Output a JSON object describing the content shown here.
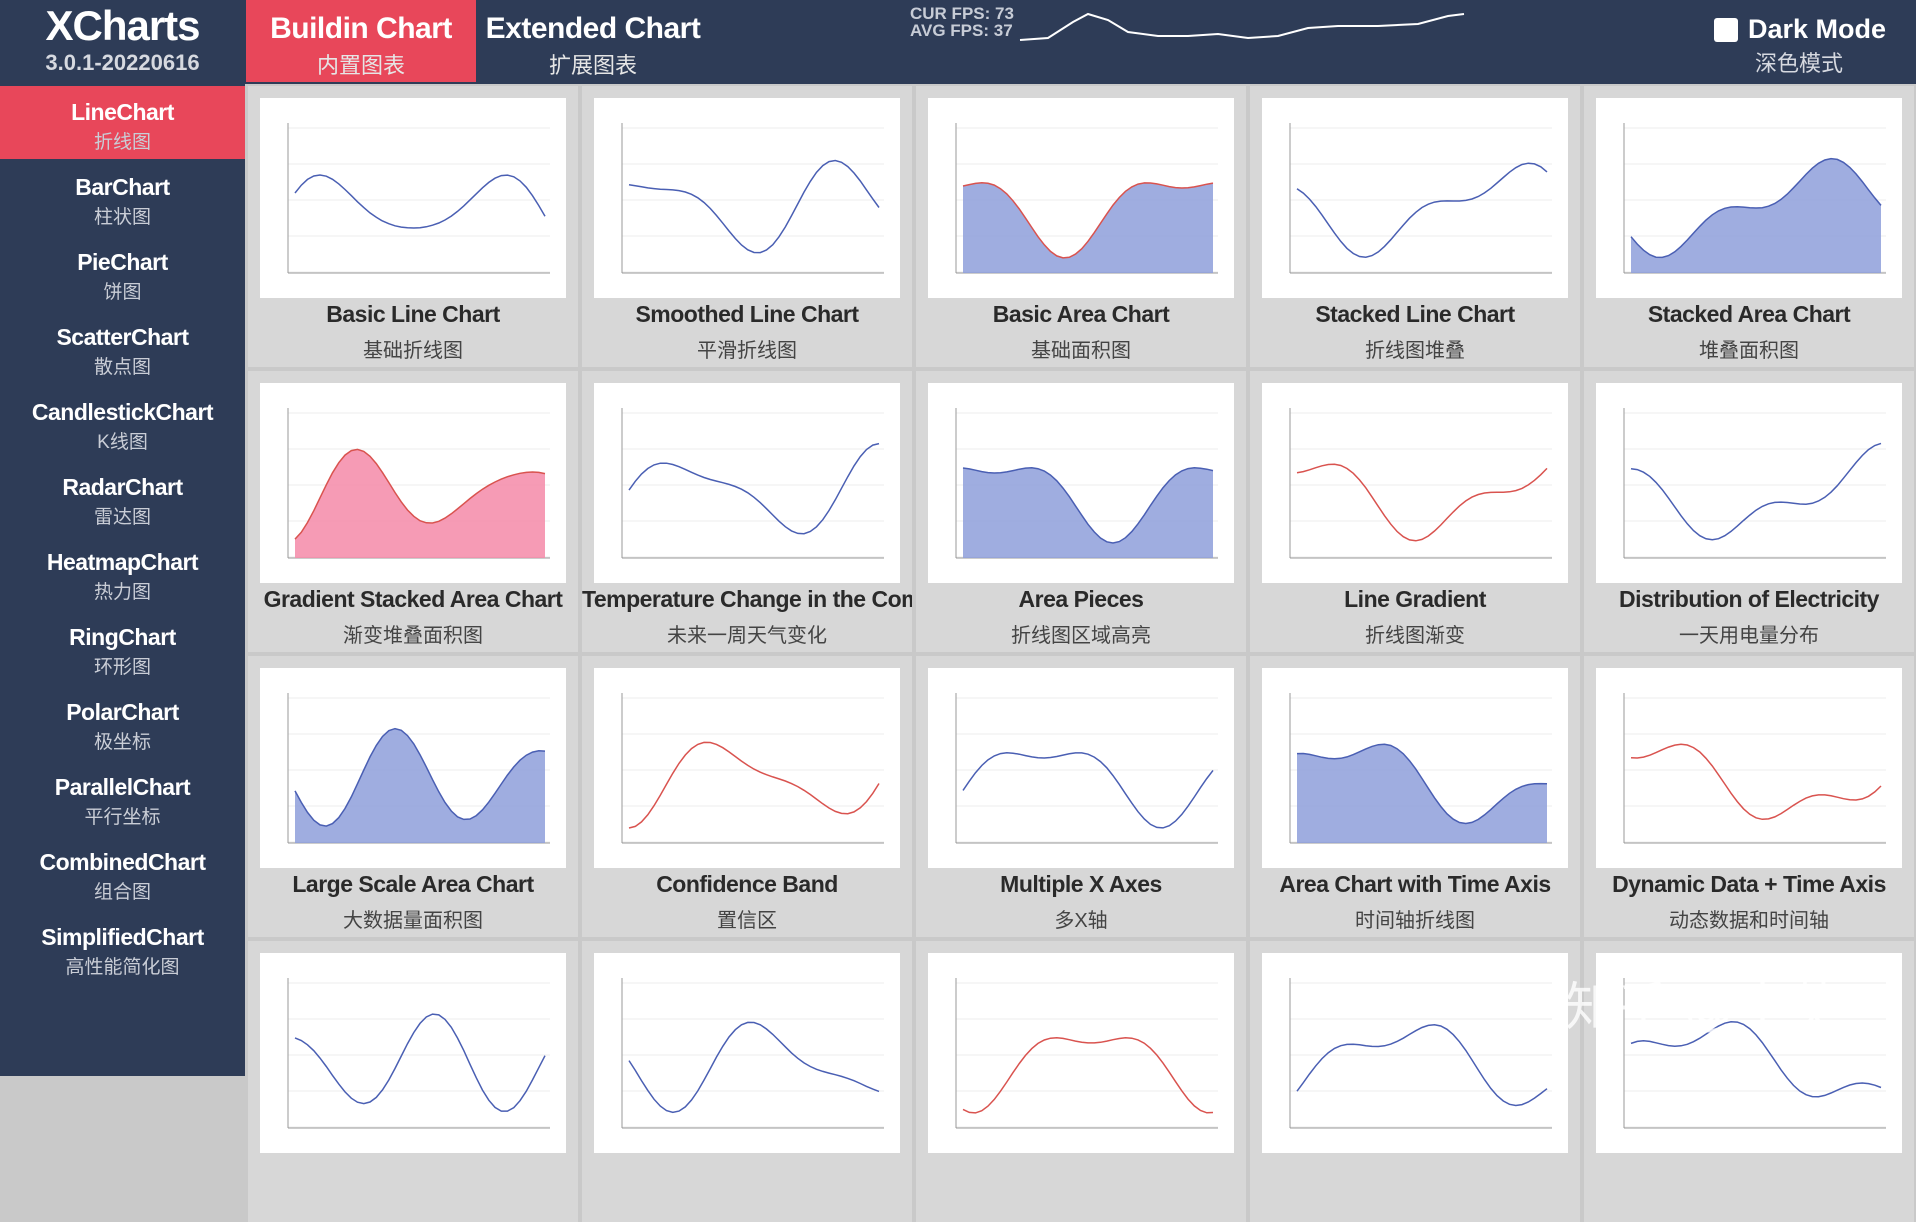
{
  "header": {
    "title": "XCharts",
    "version": "3.0.1-20220616",
    "tabs": [
      {
        "label": "Buildin Chart",
        "sublabel": "内置图表",
        "active": true
      },
      {
        "label": "Extended Chart",
        "sublabel": "扩展图表",
        "active": false
      }
    ],
    "fps": {
      "current": "CUR FPS: 73",
      "average": "AVG FPS: 37"
    },
    "dark_mode": {
      "label": "Dark Mode",
      "sublabel": "深色模式",
      "checked": false
    }
  },
  "sidebar": [
    {
      "label": "LineChart",
      "sublabel": "折线图",
      "active": true
    },
    {
      "label": "BarChart",
      "sublabel": "柱状图",
      "active": false
    },
    {
      "label": "PieChart",
      "sublabel": "饼图",
      "active": false
    },
    {
      "label": "ScatterChart",
      "sublabel": "散点图",
      "active": false
    },
    {
      "label": "CandlestickChart",
      "sublabel": "K线图",
      "active": false
    },
    {
      "label": "RadarChart",
      "sublabel": "雷达图",
      "active": false
    },
    {
      "label": "HeatmapChart",
      "sublabel": "热力图",
      "active": false
    },
    {
      "label": "RingChart",
      "sublabel": "环形图",
      "active": false
    },
    {
      "label": "PolarChart",
      "sublabel": "极坐标",
      "active": false
    },
    {
      "label": "ParallelChart",
      "sublabel": "平行坐标",
      "active": false
    },
    {
      "label": "CombinedChart",
      "sublabel": "组合图",
      "active": false
    },
    {
      "label": "SimplifiedChart",
      "sublabel": "高性能简化图",
      "active": false
    }
  ],
  "cards": [
    {
      "title": "Basic Line Chart",
      "subtitle": "基础折线图"
    },
    {
      "title": "Smoothed Line Chart",
      "subtitle": "平滑折线图"
    },
    {
      "title": "Basic Area Chart",
      "subtitle": "基础面积图"
    },
    {
      "title": "Stacked Line Chart",
      "subtitle": "折线图堆叠"
    },
    {
      "title": "Stacked Area Chart",
      "subtitle": "堆叠面积图"
    },
    {
      "title": "Gradient Stacked Area Chart",
      "subtitle": "渐变堆叠面积图"
    },
    {
      "title": "Temperature Change in the Coming",
      "subtitle": "未来一周天气变化"
    },
    {
      "title": "Area Pieces",
      "subtitle": "折线图区域高亮"
    },
    {
      "title": "Line Gradient",
      "subtitle": "折线图渐变"
    },
    {
      "title": "Distribution of Electricity",
      "subtitle": "一天用电量分布"
    },
    {
      "title": "Large Scale Area Chart",
      "subtitle": "大数据量面积图"
    },
    {
      "title": "Confidence Band",
      "subtitle": "置信区"
    },
    {
      "title": "Multiple X Axes",
      "subtitle": "多X轴"
    },
    {
      "title": "Area Chart with Time Axis",
      "subtitle": "时间轴折线图"
    },
    {
      "title": "Dynamic Data + Time Axis",
      "subtitle": "动态数据和时间轴"
    }
  ],
  "watermark": "知乎 @小莫"
}
